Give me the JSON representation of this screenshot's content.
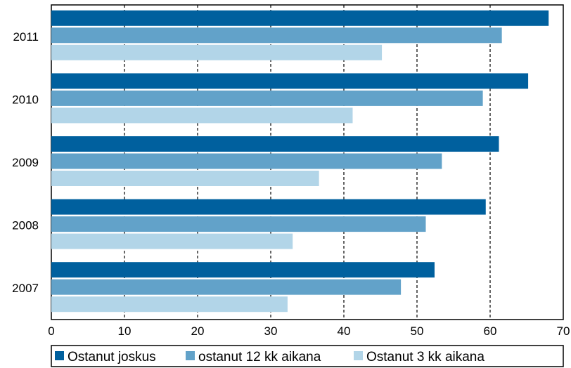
{
  "chart_data": {
    "type": "bar",
    "orientation": "horizontal",
    "categories": [
      "2011",
      "2010",
      "2009",
      "2008",
      "2007"
    ],
    "series": [
      {
        "name": "Ostanut joskus",
        "color": "#00609e",
        "values": [
          68,
          65.2,
          61.2,
          59.4,
          52.4
        ]
      },
      {
        "name": "ostanut 12 kk aikana",
        "color": "#62a2c9",
        "values": [
          61.6,
          59,
          53.4,
          51.2,
          47.8
        ]
      },
      {
        "name": "Ostanut 3 kk aikana",
        "color": "#b2d5e8",
        "values": [
          45.2,
          41.2,
          36.6,
          33,
          32.3
        ]
      }
    ],
    "xlim": [
      0,
      70
    ],
    "xticks": [
      0,
      10,
      20,
      30,
      40,
      50,
      60,
      70
    ],
    "grid": "vertical dashed",
    "legend_position": "bottom"
  }
}
